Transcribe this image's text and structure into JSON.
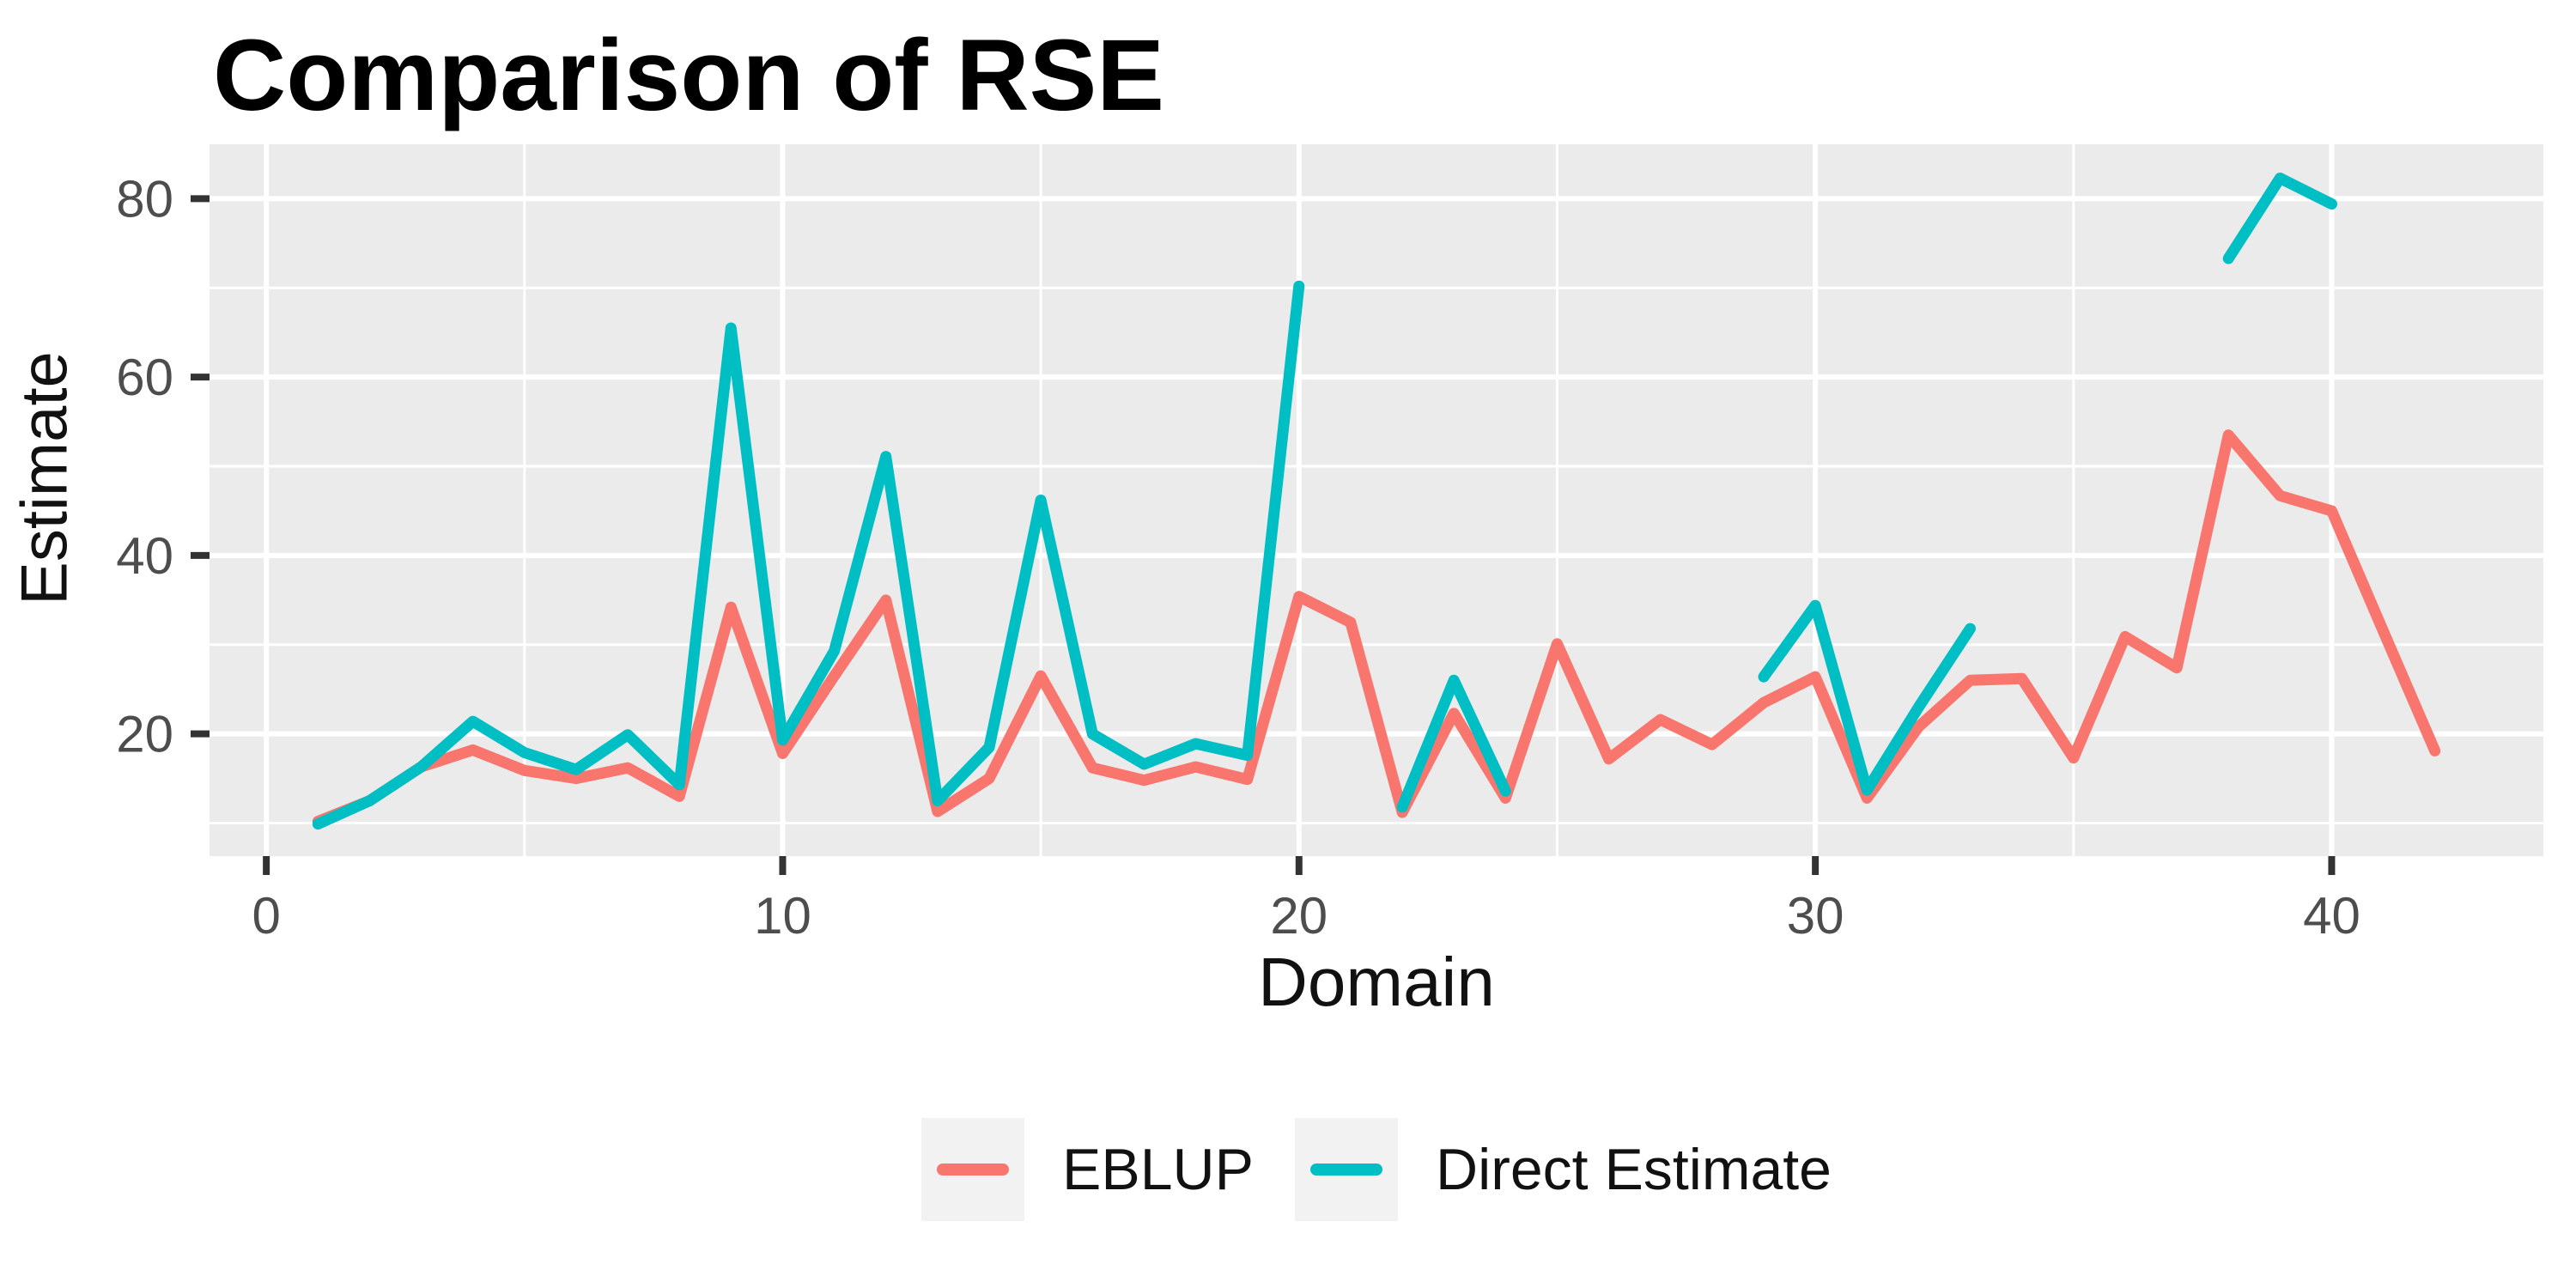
{
  "title": "Comparison of RSE",
  "chart_data": {
    "type": "line",
    "title": "Comparison of RSE",
    "xlabel": "Domain",
    "ylabel": "Estimate",
    "x": [
      1,
      2,
      3,
      4,
      5,
      6,
      7,
      8,
      9,
      10,
      11,
      12,
      13,
      14,
      15,
      16,
      17,
      18,
      19,
      20,
      21,
      22,
      23,
      24,
      25,
      26,
      27,
      28,
      29,
      30,
      31,
      32,
      33,
      34,
      35,
      36,
      37,
      38,
      39,
      40,
      41,
      42
    ],
    "series": [
      {
        "name": "EBLUP",
        "color": "#F8766D",
        "values": [
          10.2,
          12.5,
          16.3,
          18.2,
          15.9,
          15.0,
          16.2,
          13.0,
          34.2,
          17.8,
          26.5,
          35.0,
          11.3,
          15.0,
          26.5,
          16.2,
          14.8,
          16.3,
          14.9,
          35.4,
          32.5,
          11.2,
          22.3,
          12.8,
          30.1,
          17.2,
          21.6,
          18.8,
          23.5,
          26.4,
          12.8,
          20.8,
          26.0,
          26.2,
          17.3,
          30.9,
          27.4,
          53.5,
          46.7,
          45.0,
          31.5,
          18.1
        ]
      },
      {
        "name": "Direct Estimate",
        "color": "#00BFC4",
        "values": [
          9.9,
          12.5,
          16.3,
          21.4,
          17.9,
          16.0,
          19.9,
          14.3,
          65.5,
          19.3,
          29.3,
          51.1,
          12.5,
          18.5,
          46.2,
          20.0,
          16.6,
          18.9,
          17.6,
          70.2,
          null,
          11.8,
          26.0,
          13.6,
          null,
          null,
          null,
          null,
          26.4,
          34.4,
          13.7,
          23.0,
          31.8,
          null,
          null,
          null,
          null,
          73.3,
          82.3,
          79.4,
          null,
          null
        ]
      }
    ],
    "x_ticks": [
      0,
      10,
      20,
      30,
      40
    ],
    "y_ticks": [
      20,
      40,
      60,
      80
    ],
    "x_minor_ticks": [
      5,
      15,
      25,
      35
    ],
    "y_minor_ticks": [
      10,
      30,
      50,
      70
    ],
    "xlim": [
      -1.1,
      44.1
    ],
    "ylim": [
      6.3,
      86.1
    ],
    "grid": true,
    "legend_position": "bottom",
    "panel_bg": "#EBEBEB",
    "grid_color": "#FFFFFF",
    "tick_mark_color": "#333333",
    "tick_label_color": "#4D4D4D",
    "legend_key_bg": "#F2F2F2"
  }
}
